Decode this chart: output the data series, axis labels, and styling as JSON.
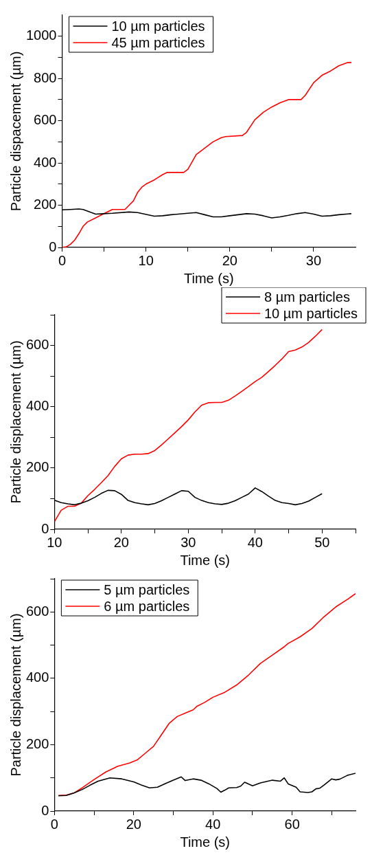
{
  "chart_data": [
    {
      "type": "line",
      "xlabel": "Time (s)",
      "ylabel": "Particle dispacement (µm)",
      "xlim": [
        0,
        35
      ],
      "ylim": [
        0,
        1100
      ],
      "xticks": [
        0,
        {
          "value": 5,
          "label": null
        },
        10,
        {
          "value": 15,
          "label": null
        },
        20,
        {
          "value": 25,
          "label": null
        },
        30
      ],
      "yticks": [
        0,
        {
          "value": 100,
          "label": null
        },
        200,
        {
          "value": 300,
          "label": null
        },
        400,
        {
          "value": 500,
          "label": null
        },
        600,
        {
          "value": 700,
          "label": null
        },
        800,
        {
          "value": 900,
          "label": null
        },
        1000
      ],
      "legend": "top left",
      "series": [
        {
          "name": "10 µm particles",
          "color": "#000000",
          "x": [
            0,
            1,
            2,
            2.5,
            3.5,
            4,
            5,
            6,
            8,
            9,
            11,
            12,
            13,
            15,
            16,
            17,
            18,
            19,
            20,
            22,
            23,
            24,
            25,
            26,
            27,
            28,
            29,
            30,
            31,
            32,
            33,
            34.5
          ],
          "values": [
            178,
            180,
            182,
            180,
            165,
            158,
            160,
            162,
            168,
            165,
            148,
            150,
            155,
            162,
            165,
            155,
            145,
            145,
            150,
            160,
            158,
            150,
            140,
            145,
            152,
            160,
            165,
            158,
            148,
            150,
            155,
            160
          ]
        },
        {
          "name": "45 µm particles",
          "color": "#ff0000",
          "x": [
            0,
            0.5,
            1,
            1.5,
            2,
            2.5,
            3,
            4,
            5,
            6,
            7.5,
            8,
            8.5,
            9,
            9.5,
            10,
            11,
            12,
            12.5,
            14.5,
            15,
            16,
            17,
            18,
            19,
            19.5,
            21.5,
            22,
            23,
            24,
            25,
            26,
            27,
            28.5,
            29,
            30,
            31,
            32,
            33,
            34,
            34.5
          ],
          "values": [
            0,
            3,
            15,
            35,
            65,
            100,
            120,
            140,
            160,
            180,
            180,
            200,
            220,
            260,
            285,
            300,
            320,
            345,
            355,
            355,
            370,
            440,
            470,
            500,
            520,
            525,
            530,
            545,
            605,
            640,
            665,
            685,
            700,
            700,
            720,
            780,
            815,
            835,
            860,
            875,
            875
          ]
        }
      ]
    },
    {
      "type": "line",
      "xlabel": "Time (s)",
      "ylabel": "Particle displacement (µm)",
      "xlim": [
        10,
        55
      ],
      "ylim": [
        0,
        700
      ],
      "xticks": [
        10,
        {
          "value": 15,
          "label": null
        },
        20,
        {
          "value": 25,
          "label": null
        },
        30,
        {
          "value": 35,
          "label": null
        },
        40,
        {
          "value": 45,
          "label": null
        },
        50,
        {
          "value": 55,
          "label": null
        }
      ],
      "yticks": [
        0,
        {
          "value": 100,
          "label": null
        },
        200,
        {
          "value": 300,
          "label": null
        },
        400,
        {
          "value": 500,
          "label": null
        },
        600,
        {
          "value": 700,
          "label": null
        }
      ],
      "legend": "top right",
      "series": [
        {
          "name": "8 µm particles",
          "color": "#000000",
          "x": [
            10,
            11,
            12,
            13,
            14,
            15,
            16,
            17,
            18,
            19,
            20,
            21,
            22,
            23,
            24,
            25,
            26,
            27,
            28,
            29,
            30,
            31,
            32,
            33,
            34,
            35,
            36,
            37,
            38,
            39,
            40,
            41,
            42,
            43,
            44,
            45,
            46,
            47,
            48,
            49,
            50
          ],
          "values": [
            95,
            87,
            83,
            80,
            85,
            93,
            104,
            117,
            127,
            126,
            114,
            94,
            87,
            83,
            80,
            84,
            93,
            104,
            115,
            126,
            124,
            104,
            94,
            87,
            83,
            81,
            85,
            93,
            104,
            115,
            135,
            123,
            108,
            94,
            87,
            84,
            80,
            84,
            92,
            104,
            116
          ]
        },
        {
          "name": "10 µm particles",
          "color": "#ff0000",
          "x": [
            10,
            11,
            12,
            13,
            14,
            15,
            16,
            17,
            18,
            19,
            20,
            21,
            22,
            23,
            24,
            25,
            26,
            27,
            28,
            29,
            30,
            31,
            32,
            33,
            34,
            35,
            36,
            37,
            38,
            39,
            40,
            41,
            42,
            43,
            44,
            45,
            46,
            47,
            48,
            49,
            50
          ],
          "values": [
            25,
            62,
            75,
            75,
            85,
            110,
            130,
            152,
            175,
            205,
            230,
            242,
            245,
            245,
            247,
            257,
            275,
            295,
            315,
            335,
            357,
            383,
            405,
            413,
            414,
            414,
            421,
            435,
            450,
            466,
            482,
            496,
            515,
            535,
            556,
            580,
            585,
            595,
            610,
            630,
            652
          ]
        }
      ]
    },
    {
      "type": "line",
      "xlabel": "Time (s)",
      "ylabel": "Particle displacement (µm)",
      "xlim": [
        0,
        76
      ],
      "ylim": [
        0,
        700
      ],
      "xticks": [
        0,
        {
          "value": 10,
          "label": null
        },
        20,
        {
          "value": 30,
          "label": null
        },
        40,
        {
          "value": 50,
          "label": null
        },
        60,
        {
          "value": 70,
          "label": null
        }
      ],
      "yticks": [
        0,
        {
          "value": 100,
          "label": null
        },
        200,
        {
          "value": 300,
          "label": null
        },
        400,
        {
          "value": 500,
          "label": null
        },
        600,
        {
          "value": 700,
          "label": null
        }
      ],
      "legend": "top left",
      "series": [
        {
          "name": "5 µm particles",
          "color": "#000000",
          "x": [
            1,
            3,
            5,
            7,
            9,
            11,
            14,
            17,
            20,
            22,
            24,
            26,
            28,
            30,
            32,
            33,
            35,
            37,
            39,
            41,
            42,
            43,
            44,
            46,
            47,
            48,
            50,
            52,
            55,
            57,
            58,
            59,
            61,
            62,
            64,
            65,
            66,
            67,
            68,
            70,
            71,
            72,
            74,
            76
          ],
          "values": [
            46,
            47,
            55,
            65,
            78,
            90,
            100,
            97,
            88,
            78,
            70,
            72,
            83,
            93,
            103,
            92,
            97,
            93,
            82,
            68,
            57,
            63,
            70,
            71,
            75,
            87,
            76,
            85,
            93,
            90,
            100,
            82,
            72,
            58,
            56,
            58,
            67,
            69,
            78,
            97,
            94,
            96,
            108,
            114
          ]
        },
        {
          "name": "6 µm particles",
          "color": "#ff0000",
          "x": [
            1,
            3,
            5,
            7,
            10,
            13,
            16,
            19,
            21,
            23,
            25,
            27,
            29,
            31,
            33,
            35,
            36,
            38,
            40,
            43,
            46,
            49,
            52,
            55,
            58,
            59,
            62,
            65,
            68,
            71,
            74,
            76
          ],
          "values": [
            47,
            48,
            55,
            70,
            95,
            118,
            135,
            145,
            155,
            175,
            195,
            230,
            265,
            285,
            295,
            305,
            316,
            328,
            343,
            358,
            380,
            410,
            445,
            470,
            495,
            505,
            525,
            550,
            585,
            615,
            638,
            655
          ]
        }
      ]
    }
  ]
}
